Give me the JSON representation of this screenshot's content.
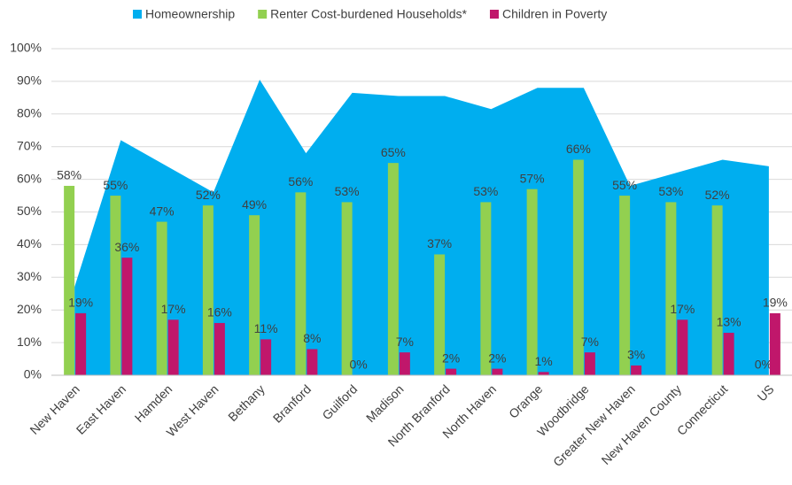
{
  "chart_data": {
    "type": "bar_area",
    "categories": [
      "New Haven",
      "East Haven",
      "Hamden",
      "West Haven",
      "Bethany",
      "Branford",
      "Guilford",
      "Madison",
      "North Branford",
      "North Haven",
      "Orange",
      "Woodbridge",
      "Greater New Haven",
      "New Haven County",
      "Connecticut",
      "US"
    ],
    "series": [
      {
        "name": "Homeownership",
        "color": "#00aeef",
        "kind": "area",
        "values": [
          27,
          72,
          64,
          56,
          90.5,
          68,
          86.5,
          85.5,
          85.5,
          81.5,
          88,
          88,
          58,
          62,
          66,
          64
        ]
      },
      {
        "name": "Renter Cost-burdened Households*",
        "color": "#92d050",
        "kind": "bar",
        "values": [
          58,
          55,
          47,
          52,
          49,
          56,
          53,
          65,
          37,
          53,
          57,
          66,
          55,
          53,
          52,
          0
        ],
        "value_labels": [
          "58%",
          "55%",
          "47%",
          "52%",
          "49%",
          "56%",
          "53%",
          "65%",
          "37%",
          "53%",
          "57%",
          "66%",
          "55%",
          "53%",
          "52%",
          "0%"
        ]
      },
      {
        "name": "Children in Poverty",
        "color": "#c0176b",
        "kind": "bar",
        "values": [
          19,
          36,
          17,
          16,
          11,
          8,
          0,
          7,
          2,
          2,
          1,
          7,
          3,
          17,
          13,
          19
        ],
        "value_labels": [
          "19%",
          "36%",
          "17%",
          "16%",
          "11%",
          "8%",
          "0%",
          "7%",
          "2%",
          "2%",
          "1%",
          "7%",
          "3%",
          "17%",
          "13%",
          "19%"
        ]
      }
    ],
    "ylim": [
      0,
      100
    ],
    "yticks": [
      {
        "value": 0,
        "label": "0%"
      },
      {
        "value": 10,
        "label": "10%"
      },
      {
        "value": 20,
        "label": "20%"
      },
      {
        "value": 30,
        "label": "30%"
      },
      {
        "value": 40,
        "label": "40%"
      },
      {
        "value": 50,
        "label": "50%"
      },
      {
        "value": 60,
        "label": "60%"
      },
      {
        "value": 70,
        "label": "70%"
      },
      {
        "value": 80,
        "label": "80%"
      },
      {
        "value": 90,
        "label": "90%"
      },
      {
        "value": 100,
        "label": "100%"
      }
    ],
    "grid": true,
    "legend": "top"
  }
}
